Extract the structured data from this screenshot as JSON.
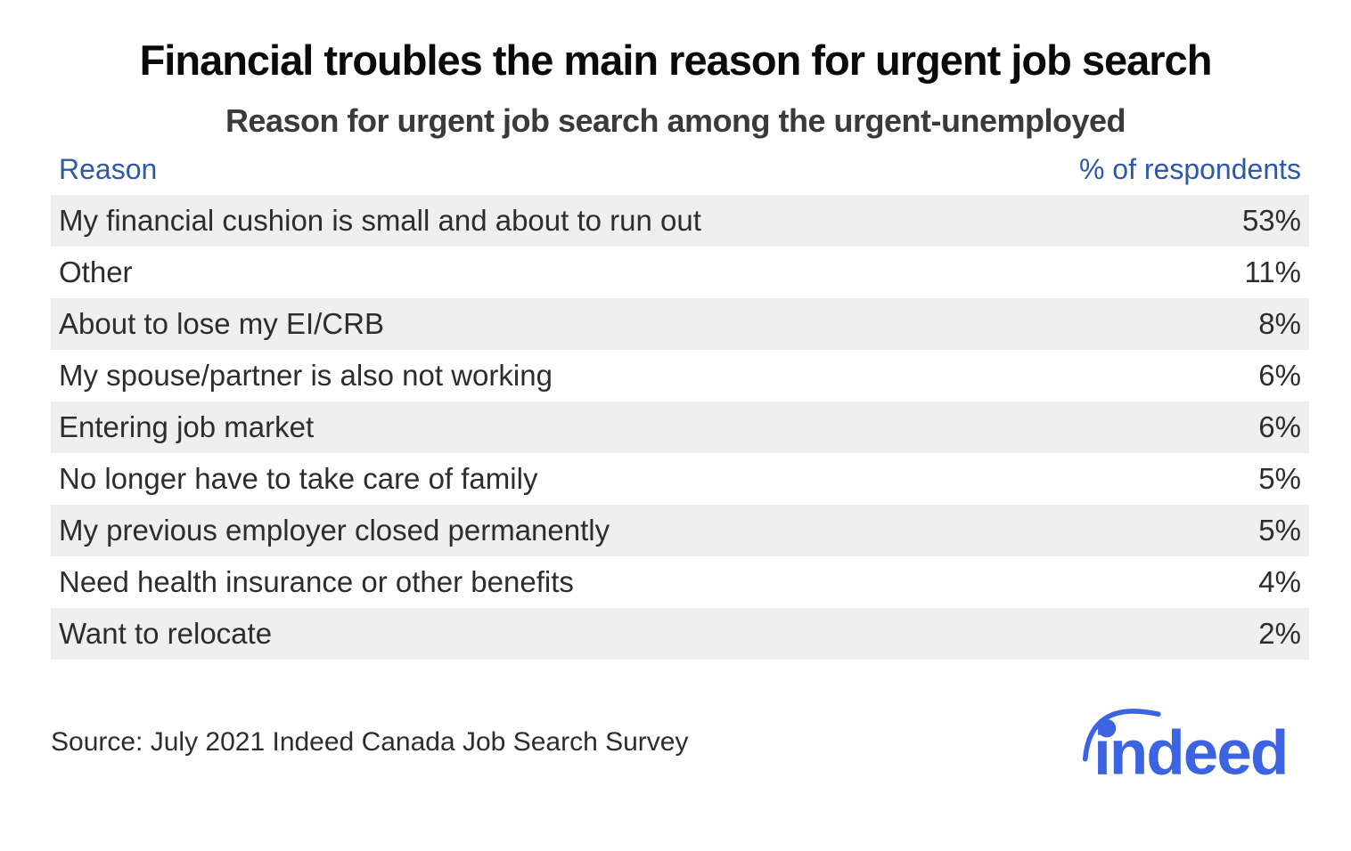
{
  "header": {
    "title": "Financial troubles the main reason for urgent job search",
    "subtitle": "Reason for urgent job search among the urgent-unemployed"
  },
  "table": {
    "column_headers": {
      "reason": "Reason",
      "percent": "% of respondents"
    },
    "rows": [
      {
        "reason": "My financial cushion is small and about to run out",
        "percent": "53%"
      },
      {
        "reason": "Other",
        "percent": "11%"
      },
      {
        "reason": "About to lose my EI/CRB",
        "percent": "8%"
      },
      {
        "reason": "My spouse/partner is also not working",
        "percent": "6%"
      },
      {
        "reason": "Entering job market",
        "percent": "6%"
      },
      {
        "reason": "No longer have to take care of family",
        "percent": "5%"
      },
      {
        "reason": "My previous employer closed permanently",
        "percent": "5%"
      },
      {
        "reason": "Need health insurance or other benefits",
        "percent": "4%"
      },
      {
        "reason": "Want to relocate",
        "percent": "2%"
      }
    ]
  },
  "footer": {
    "source": "Source: July 2021 Indeed Canada Job Search Survey",
    "logo_text": "indeed"
  },
  "colors": {
    "header_blue": "#2d59a8",
    "logo_blue": "#3b63e2",
    "stripe_gray": "#efefef",
    "text_dark": "#2d2d2d",
    "title_black": "#0a0a0a",
    "subtitle_gray": "#3a3a3a"
  },
  "chart_data": {
    "type": "table",
    "title": "Financial troubles the main reason for urgent job search",
    "subtitle": "Reason for urgent job search among the urgent-unemployed",
    "columns": [
      "Reason",
      "% of respondents"
    ],
    "categories": [
      "My financial cushion is small and about to run out",
      "Other",
      "About to lose my EI/CRB",
      "My spouse/partner is also not working",
      "Entering job market",
      "No longer have to take care of family",
      "My previous employer closed permanently",
      "Need health insurance or other benefits",
      "Want to relocate"
    ],
    "values": [
      53,
      11,
      8,
      6,
      6,
      5,
      5,
      4,
      2
    ],
    "unit": "%",
    "layout_hints": {
      "row_striping": "alternating gray starting with first row",
      "value_alignment": "right"
    },
    "source": "Source: July 2021 Indeed Canada Job Search Survey"
  }
}
